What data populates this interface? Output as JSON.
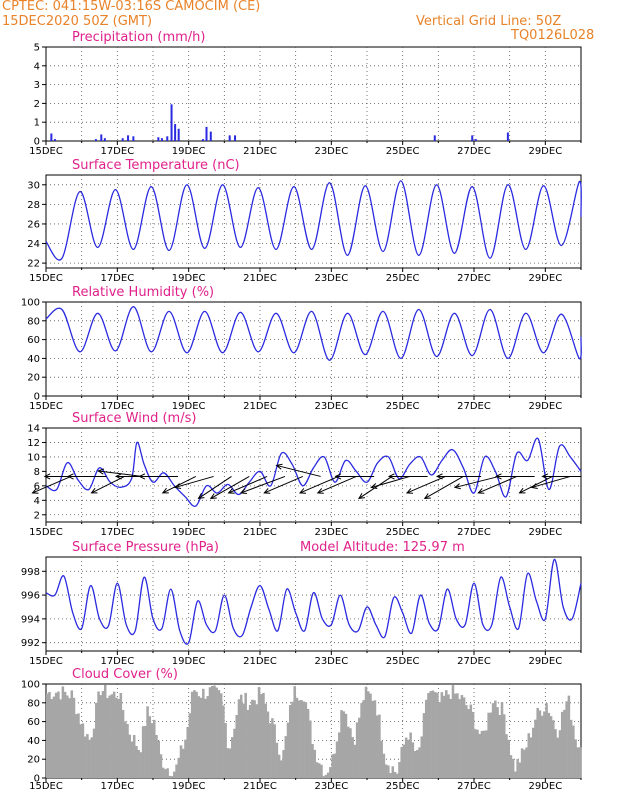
{
  "header": {
    "line1_left": "CPTEC:   041:15W-03:16S   CAMOCIM (CE)",
    "line2_left": "15DEC2020 50Z (GMT)",
    "line1_right": "Vertical Grid Line: 50Z",
    "line2_right": "TQ0126L028"
  },
  "chart_data": [
    {
      "type": "bar",
      "title": "Precipitation (mm/h)",
      "ylim": [
        0,
        5
      ],
      "yticks": [
        0,
        1,
        2,
        3,
        4,
        5
      ],
      "xticks": [
        "15DEC",
        "17DEC",
        "19DEC",
        "21DEC",
        "23DEC",
        "25DEC",
        "27DEC",
        "29DEC"
      ],
      "x_days": [
        0,
        15
      ],
      "color": "#2a2ae0",
      "bars": [
        {
          "x": 0.15,
          "y": 0.4
        },
        {
          "x": 0.25,
          "y": 0.1
        },
        {
          "x": 1.4,
          "y": 0.1
        },
        {
          "x": 1.55,
          "y": 0.35
        },
        {
          "x": 1.65,
          "y": 0.15
        },
        {
          "x": 2.15,
          "y": 0.15
        },
        {
          "x": 2.3,
          "y": 0.3
        },
        {
          "x": 2.45,
          "y": 0.25
        },
        {
          "x": 3.15,
          "y": 0.2
        },
        {
          "x": 3.25,
          "y": 0.15
        },
        {
          "x": 3.4,
          "y": 0.25
        },
        {
          "x": 3.52,
          "y": 1.95
        },
        {
          "x": 3.62,
          "y": 0.9
        },
        {
          "x": 3.72,
          "y": 0.65
        },
        {
          "x": 4.4,
          "y": 0.1
        },
        {
          "x": 4.5,
          "y": 0.75
        },
        {
          "x": 4.62,
          "y": 0.5
        },
        {
          "x": 5.15,
          "y": 0.3
        },
        {
          "x": 5.3,
          "y": 0.3
        },
        {
          "x": 10.9,
          "y": 0.3
        },
        {
          "x": 11.95,
          "y": 0.3
        },
        {
          "x": 12.05,
          "y": 0.1
        },
        {
          "x": 12.95,
          "y": 0.45
        }
      ]
    },
    {
      "type": "line",
      "title": "Surface Temperature (nC)",
      "ylim": [
        21.5,
        31
      ],
      "yticks": [
        22,
        24,
        26,
        28,
        30
      ],
      "xticks": [
        "15DEC",
        "17DEC",
        "19DEC",
        "21DEC",
        "23DEC",
        "25DEC",
        "27DEC",
        "29DEC"
      ],
      "x_days": [
        0,
        15
      ],
      "color": "#2a2ae0",
      "x": [
        0,
        0.45,
        0.95,
        1.45,
        1.95,
        2.45,
        2.95,
        3.45,
        3.95,
        4.45,
        4.95,
        5.45,
        5.95,
        6.45,
        6.95,
        7.45,
        7.95,
        8.45,
        8.95,
        9.45,
        9.95,
        10.45,
        10.95,
        11.45,
        11.95,
        12.45,
        12.95,
        13.45,
        13.95,
        14.45,
        14.95,
        15
      ],
      "y": [
        24.2,
        22.5,
        29.3,
        23.6,
        29.5,
        23.4,
        29.8,
        23.3,
        30.0,
        23.5,
        30.0,
        23.6,
        29.7,
        23.4,
        29.8,
        23.4,
        30.2,
        22.8,
        29.9,
        23.2,
        30.4,
        22.8,
        30.0,
        23.0,
        29.8,
        22.5,
        30.0,
        23.4,
        29.9,
        23.8,
        30.3,
        26.7
      ]
    },
    {
      "type": "line",
      "title": "Relative Humidity (%)",
      "ylim": [
        0,
        100
      ],
      "yticks": [
        0,
        20,
        40,
        60,
        80,
        100
      ],
      "xticks": [
        "15DEC",
        "17DEC",
        "19DEC",
        "21DEC",
        "23DEC",
        "25DEC",
        "27DEC",
        "29DEC"
      ],
      "x_days": [
        0,
        15
      ],
      "color": "#2a2ae0",
      "x": [
        0,
        0.45,
        0.95,
        1.45,
        1.95,
        2.45,
        2.95,
        3.45,
        3.95,
        4.45,
        4.95,
        5.45,
        5.95,
        6.45,
        6.95,
        7.45,
        7.95,
        8.45,
        8.95,
        9.45,
        9.95,
        10.45,
        10.95,
        11.45,
        11.95,
        12.45,
        12.95,
        13.45,
        13.95,
        14.45,
        14.95,
        15
      ],
      "y": [
        82,
        92,
        47,
        88,
        48,
        95,
        47,
        90,
        46,
        90,
        46,
        89,
        47,
        88,
        46,
        90,
        38,
        88,
        44,
        90,
        40,
        92,
        42,
        88,
        43,
        92,
        40,
        88,
        46,
        87,
        40,
        63
      ]
    },
    {
      "type": "line",
      "title": "Surface Wind (m/s)",
      "ylim": [
        1,
        14
      ],
      "yticks": [
        2,
        4,
        6,
        8,
        10,
        12,
        14
      ],
      "xticks": [
        "15DEC",
        "17DEC",
        "19DEC",
        "21DEC",
        "23DEC",
        "25DEC",
        "27DEC",
        "29DEC"
      ],
      "x_days": [
        0,
        15
      ],
      "color": "#2a2ae0",
      "x": [
        0,
        0.3,
        0.6,
        0.9,
        1.2,
        1.5,
        1.8,
        2.1,
        2.4,
        2.55,
        2.75,
        3.0,
        3.3,
        3.6,
        3.9,
        4.2,
        4.5,
        4.8,
        5.1,
        5.4,
        5.7,
        6.0,
        6.3,
        6.6,
        6.9,
        7.2,
        7.5,
        7.8,
        8.1,
        8.4,
        8.7,
        9.0,
        9.3,
        9.6,
        9.9,
        10.2,
        10.5,
        10.8,
        11.1,
        11.4,
        11.7,
        12.0,
        12.3,
        12.6,
        12.9,
        13.2,
        13.5,
        13.8,
        14.1,
        14.4,
        14.7,
        15
      ],
      "y": [
        6,
        5.5,
        9.2,
        6.8,
        5.5,
        8.5,
        6.5,
        5.8,
        7.0,
        12.0,
        9.0,
        6.5,
        7.8,
        6.0,
        4.5,
        3.2,
        6.0,
        5.0,
        6.2,
        4.8,
        6.5,
        8.0,
        6.0,
        10.5,
        9.0,
        6.0,
        8.5,
        10.0,
        6.5,
        9.5,
        8.0,
        6.5,
        9.2,
        10.0,
        7.0,
        9.0,
        10.0,
        7.5,
        9.5,
        11.0,
        8.5,
        5.0,
        10.0,
        8.0,
        4.5,
        10.5,
        9.5,
        12.5,
        5.5,
        11.5,
        10.0,
        8.0
      ],
      "vectors_x": [
        0.7,
        1.2,
        1.7,
        2.2,
        2.7,
        3.2,
        3.7,
        4.2,
        4.7,
        5.2,
        5.7,
        6.2,
        6.7,
        7.2,
        7.7,
        8.2,
        8.7,
        9.2,
        9.7,
        10.2,
        10.7,
        11.2,
        11.7,
        12.2,
        12.7,
        13.2,
        13.7,
        14.2,
        14.7,
        15.0
      ],
      "vectors_u": [
        -7,
        -8,
        -7,
        -6,
        -8,
        -8,
        -7,
        -6,
        -7,
        -6,
        -7,
        -7,
        -8,
        -7,
        -8,
        -7,
        -7,
        -7,
        -6,
        -7,
        -7,
        -7,
        -7,
        -8,
        -8,
        -7,
        -7,
        -6,
        -7,
        -7
      ],
      "vectors_v": [
        -3,
        0,
        0,
        -3,
        1,
        0,
        0,
        -3,
        -2,
        -4,
        -4,
        -3,
        -3,
        -3,
        2,
        -3,
        -3,
        0,
        -4,
        -2,
        0,
        -3,
        -4,
        0,
        -2,
        -3,
        0,
        -3,
        -2,
        0
      ]
    },
    {
      "type": "line",
      "title": "Surface Pressure (hPa)",
      "annotation": "Model Altitude: 125.97  m",
      "ylim": [
        991.3,
        999.2
      ],
      "yticks": [
        992,
        994,
        996,
        998
      ],
      "xticks": [
        "15DEC",
        "17DEC",
        "19DEC",
        "21DEC",
        "23DEC",
        "25DEC",
        "27DEC",
        "29DEC"
      ],
      "x_days": [
        0,
        15
      ],
      "color": "#2a2ae0",
      "x": [
        0,
        0.25,
        0.5,
        0.75,
        1.0,
        1.25,
        1.5,
        1.75,
        2.0,
        2.25,
        2.5,
        2.75,
        3.0,
        3.25,
        3.5,
        3.75,
        4.0,
        4.25,
        4.5,
        4.75,
        5.0,
        5.25,
        5.5,
        5.75,
        6.0,
        6.25,
        6.5,
        6.75,
        7.0,
        7.25,
        7.5,
        7.75,
        8.0,
        8.25,
        8.5,
        8.75,
        9.0,
        9.25,
        9.5,
        9.75,
        10.0,
        10.25,
        10.5,
        10.75,
        11.0,
        11.25,
        11.5,
        11.75,
        12.0,
        12.25,
        12.5,
        12.75,
        13.0,
        13.25,
        13.5,
        13.75,
        14.0,
        14.25,
        14.5,
        14.75,
        15
      ],
      "y": [
        996.2,
        996.0,
        997.6,
        994.5,
        993.2,
        996.8,
        994.0,
        993.4,
        997.0,
        993.5,
        993.0,
        997.5,
        994.0,
        993.2,
        996.5,
        993.0,
        992.0,
        995.5,
        993.5,
        993.0,
        996.0,
        993.2,
        992.6,
        995.0,
        996.8,
        994.8,
        993.0,
        996.5,
        994.5,
        993.0,
        996.2,
        994.0,
        993.5,
        996.0,
        993.5,
        993.0,
        995.0,
        993.5,
        992.5,
        995.8,
        994.5,
        992.8,
        996.0,
        993.6,
        993.2,
        996.5,
        994.0,
        993.5,
        997.0,
        993.5,
        993.5,
        997.5,
        995.0,
        993.2,
        997.8,
        995.5,
        994.0,
        999.0,
        995.0,
        994.0,
        997.0
      ]
    },
    {
      "type": "bar",
      "title": "Cloud Cover (%)",
      "ylim": [
        0,
        100
      ],
      "yticks": [
        0,
        20,
        40,
        60,
        80,
        100
      ],
      "xticks": [
        "15DEC",
        "17DEC",
        "19DEC",
        "21DEC",
        "23DEC",
        "25DEC",
        "27DEC",
        "29DEC"
      ],
      "x_days": [
        0,
        15
      ],
      "color": "#a6a6a6",
      "x_step": 0.0625,
      "profile_x": [
        0,
        0.3,
        0.7,
        1.0,
        1.2,
        1.5,
        1.8,
        2.0,
        2.3,
        2.6,
        2.8,
        3.0,
        3.2,
        3.4,
        3.6,
        3.9,
        4.1,
        4.3,
        4.6,
        4.9,
        5.1,
        5.4,
        5.7,
        6.0,
        6.3,
        6.6,
        6.9,
        7.2,
        7.5,
        7.8,
        8.0,
        8.3,
        8.6,
        8.9,
        9.2,
        9.5,
        9.8,
        10.1,
        10.4,
        10.7,
        11.0,
        11.3,
        11.6,
        11.9,
        12.2,
        12.5,
        12.8,
        13.1,
        13.4,
        13.7,
        14.0,
        14.3,
        14.6,
        14.9,
        15.0
      ],
      "profile_y": [
        90,
        92,
        88,
        55,
        40,
        95,
        88,
        90,
        50,
        30,
        70,
        60,
        20,
        10,
        8,
        45,
        95,
        90,
        92,
        85,
        30,
        85,
        80,
        90,
        60,
        20,
        92,
        90,
        30,
        5,
        20,
        80,
        40,
        90,
        85,
        20,
        5,
        50,
        20,
        95,
        80,
        92,
        85,
        70,
        40,
        85,
        70,
        10,
        30,
        65,
        80,
        50,
        85,
        30,
        60
      ]
    }
  ]
}
